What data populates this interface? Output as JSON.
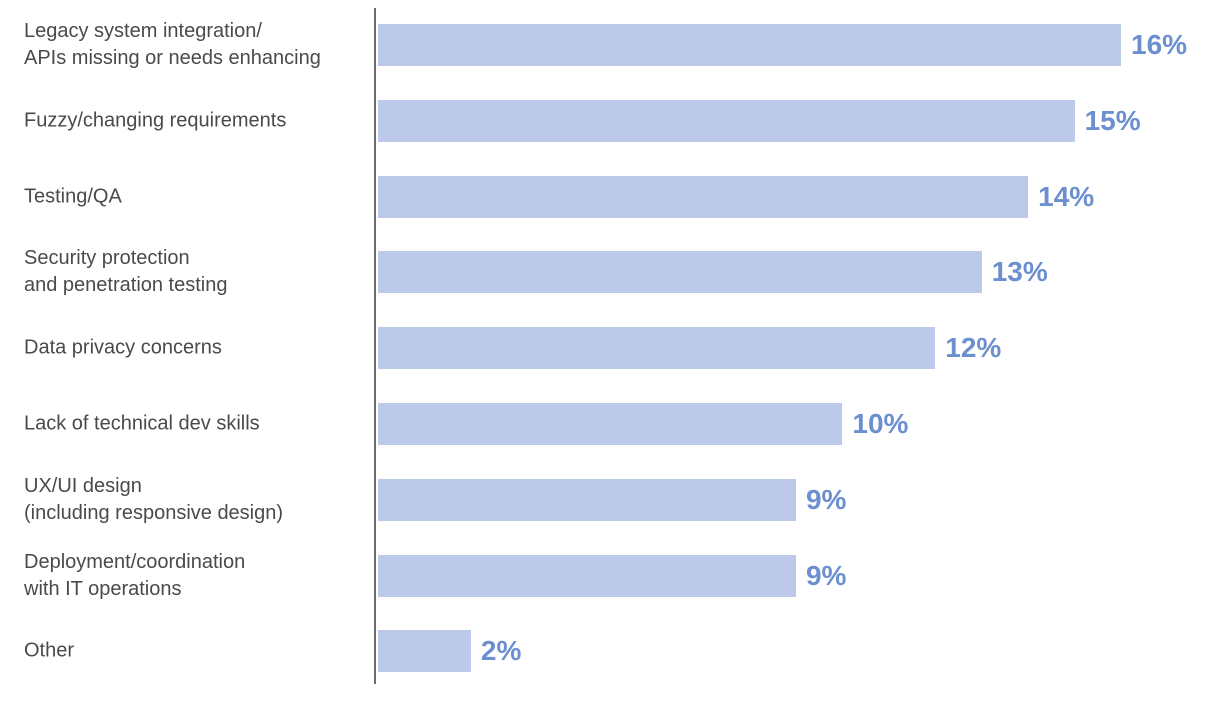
{
  "chart_data": {
    "type": "bar",
    "orientation": "horizontal",
    "categories": [
      "Legacy system integration/\nAPIs missing or needs enhancing",
      "Fuzzy/changing requirements",
      "Testing/QA",
      "Security protection\nand penetration testing",
      "Data privacy concerns",
      "Lack of technical dev skills",
      "UX/UI design\n(including responsive design)",
      "Deployment/coordination\nwith IT operations",
      "Other"
    ],
    "values": [
      16,
      15,
      14,
      13,
      12,
      10,
      9,
      9,
      2
    ],
    "value_labels": [
      "16%",
      "15%",
      "14%",
      "13%",
      "12%",
      "10%",
      "9%",
      "9%",
      "2%"
    ],
    "unit": "%",
    "xlim": [
      0,
      16
    ],
    "grid": false,
    "legend": "none",
    "colors": {
      "bar": "#bcc9e9",
      "value_label": "#6c8fd0",
      "category_label": "#4a4a4a",
      "axis": "#6b6b6b"
    }
  }
}
